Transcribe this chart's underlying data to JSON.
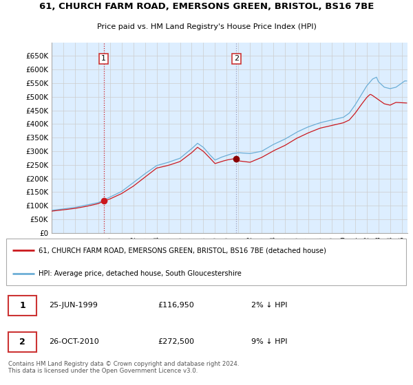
{
  "title": "61, CHURCH FARM ROAD, EMERSONS GREEN, BRISTOL, BS16 7BE",
  "subtitle": "Price paid vs. HM Land Registry's House Price Index (HPI)",
  "legend_line1": "61, CHURCH FARM ROAD, EMERSONS GREEN, BRISTOL, BS16 7BE (detached house)",
  "legend_line2": "HPI: Average price, detached house, South Gloucestershire",
  "annotation1_date": "25-JUN-1999",
  "annotation1_price": "£116,950",
  "annotation1_hpi": "2% ↓ HPI",
  "annotation2_date": "26-OCT-2010",
  "annotation2_price": "£272,500",
  "annotation2_hpi": "9% ↓ HPI",
  "footer": "Contains HM Land Registry data © Crown copyright and database right 2024.\nThis data is licensed under the Open Government Licence v3.0.",
  "ymin": 0,
  "ymax": 700000,
  "yticks": [
    0,
    50000,
    100000,
    150000,
    200000,
    250000,
    300000,
    350000,
    400000,
    450000,
    500000,
    550000,
    600000,
    650000
  ],
  "hpi_color": "#6baed6",
  "price_color": "#cb181d",
  "vline1_color": "#cb181d",
  "vline2_color": "#9999bb",
  "background_color": "#ffffff",
  "plot_bg_color": "#ddeeff",
  "grid_color": "#cccccc",
  "sale1_x": 1999.46,
  "sale1_y": 116950,
  "sale2_x": 2010.83,
  "sale2_y": 272500,
  "xmin": 1995,
  "xmax": 2025.5
}
